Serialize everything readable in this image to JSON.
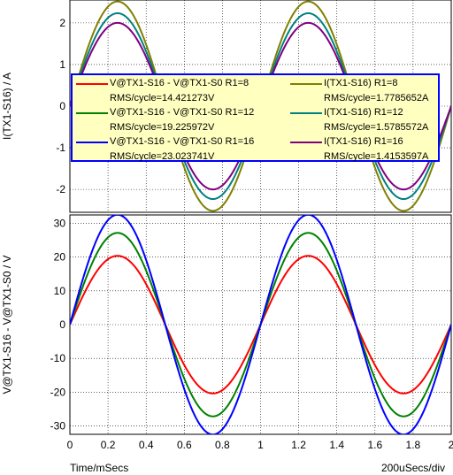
{
  "footer": {
    "xlabel": "Time/mSecs",
    "scale": "200uSecs/div"
  },
  "chart_data": [
    {
      "type": "line",
      "ylabel": "I(TX1-S16) / A",
      "xlim": [
        0,
        2
      ],
      "ylim": [
        -2.55,
        2.55
      ],
      "yticks": [
        -2,
        -1,
        0,
        1,
        2
      ],
      "xticks": [
        0,
        0.2,
        0.4,
        0.6,
        0.8,
        1,
        1.2,
        1.4,
        1.6,
        1.8,
        2
      ],
      "grid": true,
      "waveform": "sine",
      "period_ms": 1,
      "series": [
        {
          "name": "I(TX1-S16) R1=8",
          "amplitude": 2.515,
          "rms": "RMS/cycle=1.7785652A",
          "color": "#808000"
        },
        {
          "name": "I(TX1-S16) R1=12",
          "amplitude": 2.232,
          "rms": "RMS/cycle=1.5785572A",
          "color": "#008080"
        },
        {
          "name": "I(TX1-S16) R1=16",
          "amplitude": 2.001,
          "rms": "RMS/cycle=1.4153597A",
          "color": "#800080"
        }
      ]
    },
    {
      "type": "line",
      "ylabel": "V@TX1-S16 - V@TX1-S0 / V",
      "xlim": [
        0,
        2
      ],
      "ylim": [
        -32.5,
        32.5
      ],
      "yticks": [
        -30,
        -20,
        -10,
        0,
        10,
        20,
        30
      ],
      "xticks": [
        0,
        0.2,
        0.4,
        0.6,
        0.8,
        1,
        1.2,
        1.4,
        1.6,
        1.8,
        2
      ],
      "grid": true,
      "waveform": "sine",
      "period_ms": 1,
      "series": [
        {
          "name": "V@TX1-S16 - V@TX1-S0 R1=8",
          "amplitude": 20.395,
          "rms": "RMS/cycle=14.421273V",
          "color": "#ff0000"
        },
        {
          "name": "V@TX1-S16 - V@TX1-S0 R1=12",
          "amplitude": 27.189,
          "rms": "RMS/cycle=19.225972V",
          "color": "#008000"
        },
        {
          "name": "V@TX1-S16 - V@TX1-S0 R1=16",
          "amplitude": 32.56,
          "rms": "RMS/cycle=23.023741V",
          "color": "#0000ff"
        }
      ]
    }
  ],
  "legend": {
    "placement": "top",
    "items": [
      {
        "name": "V@TX1-S16 - V@TX1-S0 R1=8",
        "rms": "RMS/cycle=14.421273V",
        "color": "#ff0000"
      },
      {
        "name": "I(TX1-S16) R1=8",
        "rms": "RMS/cycle=1.7785652A",
        "color": "#808000"
      },
      {
        "name": "V@TX1-S16 - V@TX1-S0 R1=12",
        "rms": "RMS/cycle=19.225972V",
        "color": "#008000"
      },
      {
        "name": "I(TX1-S16) R1=12",
        "rms": "RMS/cycle=1.5785572A",
        "color": "#008080"
      },
      {
        "name": "V@TX1-S16 - V@TX1-S0 R1=16",
        "rms": "RMS/cycle=23.023741V",
        "color": "#0000ff"
      },
      {
        "name": "I(TX1-S16) R1=16",
        "rms": "RMS/cycle=1.4153597A",
        "color": "#800080"
      }
    ]
  }
}
